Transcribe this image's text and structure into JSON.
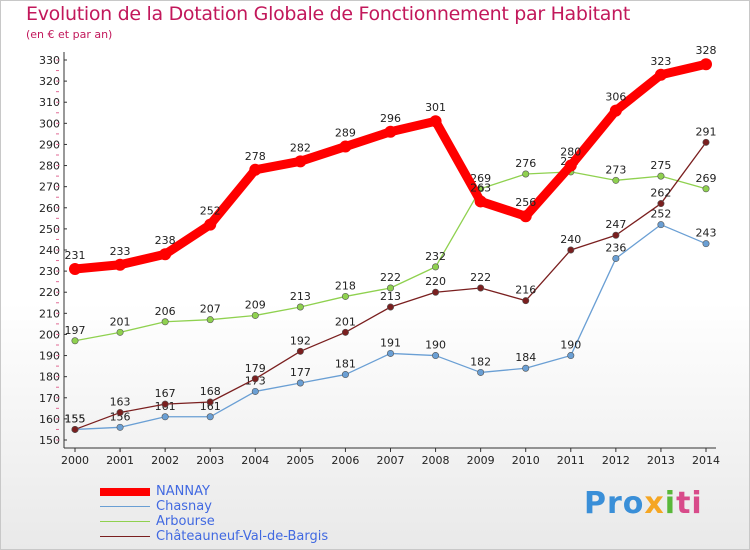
{
  "chart_data": {
    "type": "line",
    "title": "Evolution de la Dotation Globale de Fonctionnement par Habitant",
    "subtitle": "(en € et par an)",
    "x": [
      "2000",
      "2001",
      "2002",
      "2003",
      "2004",
      "2005",
      "2006",
      "2007",
      "2008",
      "2009",
      "2010",
      "2011",
      "2012",
      "2013",
      "2014"
    ],
    "ylim": [
      150,
      330
    ],
    "yticks": [
      150,
      160,
      170,
      180,
      190,
      200,
      210,
      220,
      230,
      240,
      250,
      260,
      270,
      280,
      290,
      300,
      310,
      320,
      330
    ],
    "grid": false,
    "series": [
      {
        "name": "NANNAY",
        "color": "#ff0000",
        "values": [
          231,
          233,
          238,
          252,
          278,
          282,
          289,
          296,
          301,
          263,
          256,
          280,
          306,
          323,
          328
        ],
        "labels": [
          "231",
          "233",
          "238",
          "252",
          "278",
          "282",
          "289",
          "296",
          "301",
          "263",
          "256",
          "280",
          "306",
          "323",
          "328"
        ]
      },
      {
        "name": "Chasnay",
        "color": "#6a9fd4",
        "values": [
          155,
          156,
          161,
          161,
          173,
          177,
          181,
          191,
          190,
          182,
          184,
          190,
          236,
          252,
          243
        ],
        "labels": [
          "155",
          "156",
          "161",
          "161",
          "173",
          "177",
          "181",
          "191",
          "190",
          "182",
          "184",
          "190",
          "236",
          "252",
          "243"
        ]
      },
      {
        "name": "Arbourse",
        "color": "#8fd14f",
        "values": [
          197,
          201,
          206,
          207,
          209,
          213,
          218,
          222,
          232,
          269,
          276,
          277,
          273,
          275,
          269
        ],
        "labels": [
          "197",
          "201",
          "206",
          "207",
          "209",
          "213",
          "218",
          "222",
          "232",
          "269",
          "276",
          "277",
          "273",
          "275",
          "269"
        ]
      },
      {
        "name": "Châteauneuf-Val-de-Bargis",
        "color": "#7a1f1f",
        "values": [
          155,
          163,
          167,
          168,
          179,
          192,
          201,
          213,
          220,
          222,
          216,
          240,
          247,
          262,
          291
        ],
        "labels": [
          "155",
          "163",
          "167",
          "168",
          "179",
          "192",
          "201",
          "213",
          "220",
          "222",
          "216",
          "240",
          "247",
          "262",
          "291"
        ]
      }
    ]
  },
  "logo": {
    "p1": "Pro",
    "p2": "x",
    "p3": "i",
    "p4": "ti"
  }
}
